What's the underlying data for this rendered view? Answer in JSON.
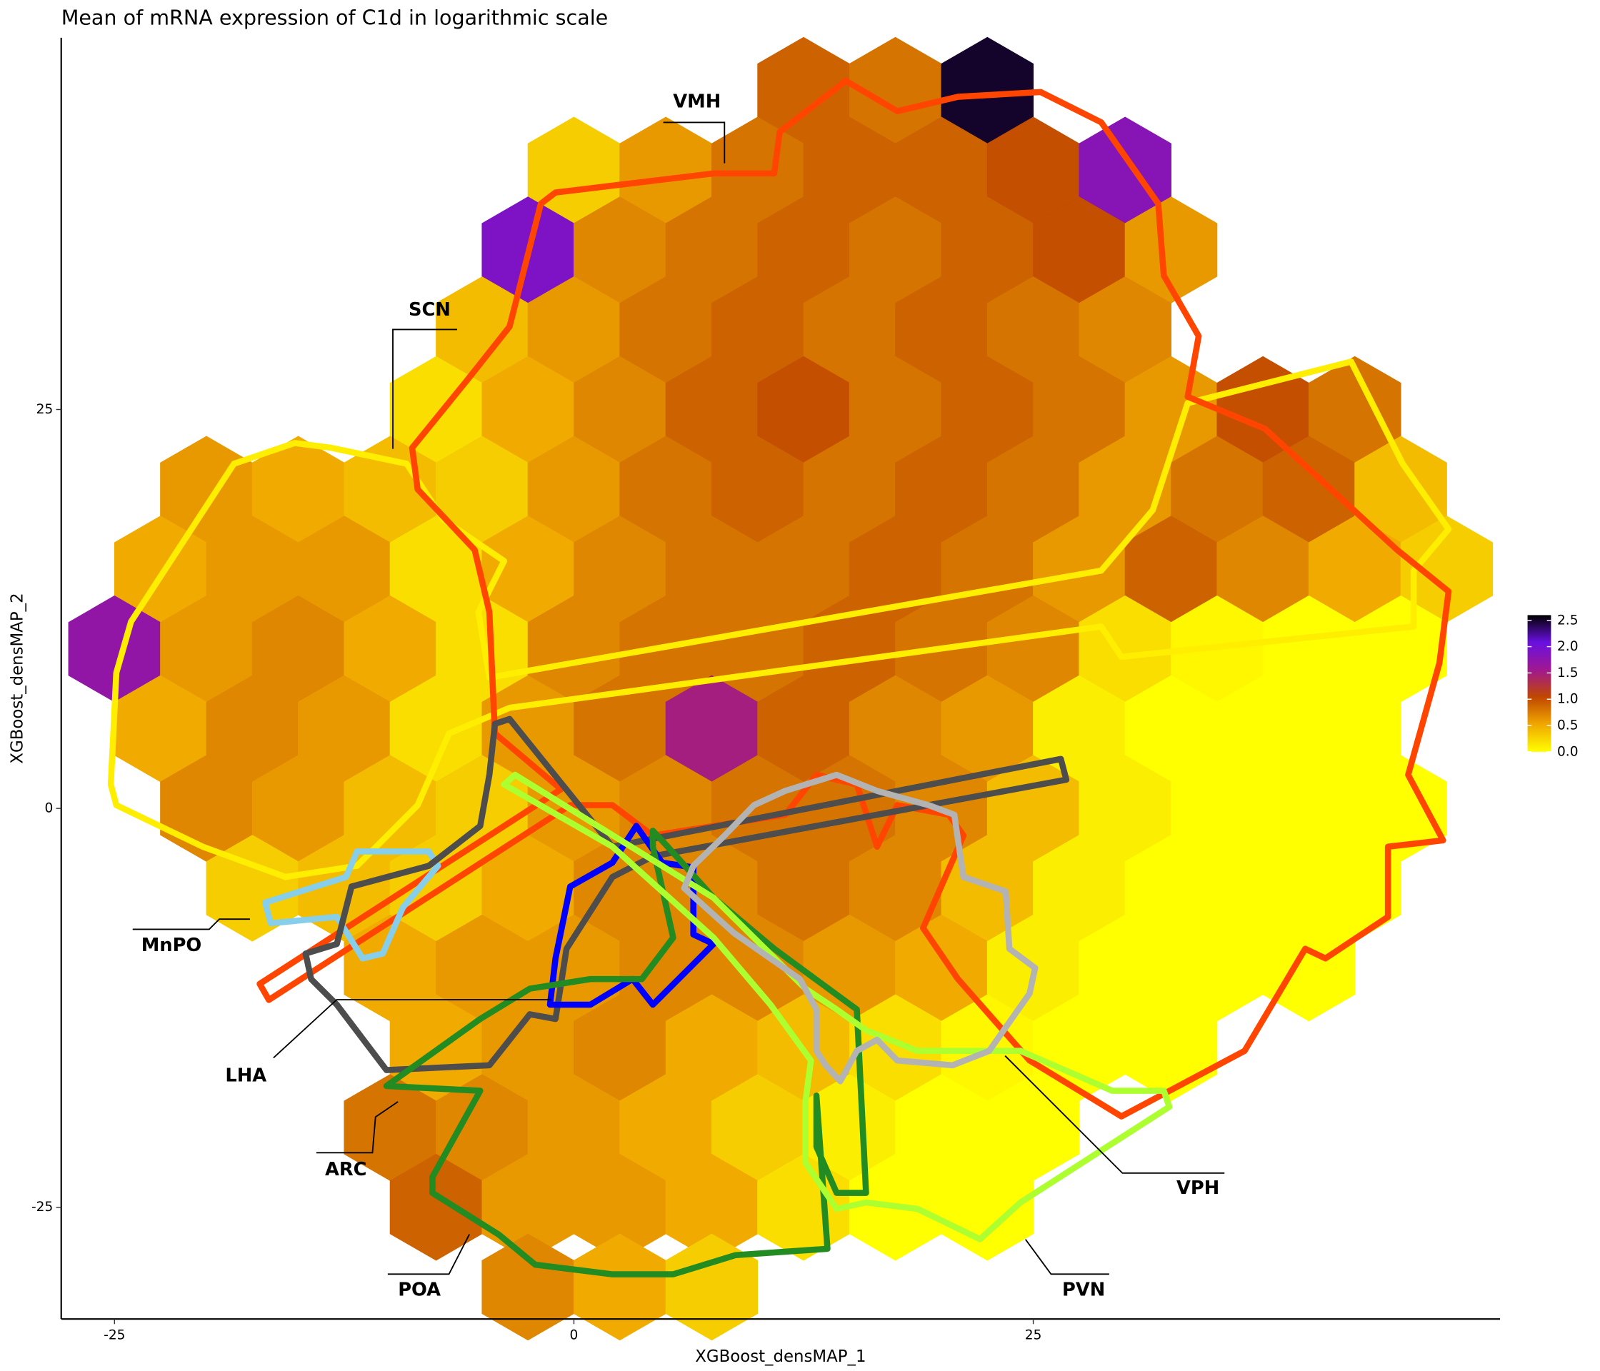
{
  "chart_data": {
    "type": "hexbin",
    "title": "Mean of mRNA expression of C1d in logarithmic scale",
    "x_label": "XGBoost_densMAP_1",
    "y_label": "XGBoost_densMAP_2",
    "xlim": [
      -27.9,
      50.4
    ],
    "ylim": [
      -32,
      48.3
    ],
    "xticks": [
      -25,
      0,
      25
    ],
    "yticks": [
      -25,
      0,
      25
    ],
    "color_scale": {
      "colors": [
        "#ffff00",
        "#f0a800",
        "#c04800",
        "#a01890",
        "#6a10e0",
        "#000000"
      ],
      "lim": [
        0,
        2.6
      ],
      "ticks": [
        {
          "value": 0,
          "label": "0.0"
        },
        {
          "value": 0.5,
          "label": "0.5"
        },
        {
          "value": 1,
          "label": "1.0"
        },
        {
          "value": 1.5,
          "label": "1.5"
        },
        {
          "value": 2,
          "label": "2.0"
        },
        {
          "value": 2.5,
          "label": "2.5"
        }
      ]
    },
    "hexbins": [
      {
        "y": 45,
        "x": [
          12.5,
          17.5,
          22.5
        ],
        "values": [
          0.9,
          0.8,
          2.5
        ]
      },
      {
        "y": 40,
        "x": [
          0,
          5,
          10,
          15,
          20,
          25,
          30
        ],
        "values": [
          0.3,
          0.6,
          0.8,
          0.9,
          0.9,
          1.0,
          1.8
        ]
      },
      {
        "y": 35,
        "x": [
          -2.5,
          2.5,
          7.5,
          12.5,
          17.5,
          22.5,
          27.5,
          32.5
        ],
        "values": [
          1.9,
          0.7,
          0.8,
          0.9,
          0.8,
          0.9,
          1.0,
          0.6
        ]
      },
      {
        "y": 30,
        "x": [
          -5,
          0,
          5,
          10,
          15,
          20,
          25,
          30
        ],
        "values": [
          0.4,
          0.6,
          0.8,
          0.9,
          0.8,
          0.9,
          0.8,
          0.7
        ]
      },
      {
        "y": 25,
        "x": [
          -7.5,
          -2.5,
          2.5,
          7.5,
          12.5,
          17.5,
          22.5,
          27.5,
          32.5,
          37.5,
          42.5
        ],
        "values": [
          0.2,
          0.5,
          0.7,
          0.9,
          1.0,
          0.8,
          0.9,
          0.8,
          0.6,
          1.0,
          0.8
        ]
      },
      {
        "y": 20,
        "x": [
          -20,
          -15,
          -10,
          -5,
          0,
          5,
          10,
          15,
          20,
          25,
          30,
          35,
          40,
          45
        ],
        "values": [
          0.6,
          0.5,
          0.4,
          0.3,
          0.6,
          0.8,
          0.9,
          0.8,
          0.9,
          0.8,
          0.6,
          0.8,
          0.9,
          0.4
        ]
      },
      {
        "y": 15,
        "x": [
          -22.5,
          -17.5,
          -12.5,
          -7.5,
          -2.5,
          2.5,
          7.5,
          12.5,
          17.5,
          22.5,
          27.5,
          32.5,
          37.5,
          42.5,
          47.5
        ],
        "values": [
          0.5,
          0.6,
          0.6,
          0.2,
          0.5,
          0.7,
          0.8,
          0.8,
          0.9,
          0.8,
          0.6,
          0.9,
          0.7,
          0.5,
          0.3
        ]
      },
      {
        "y": 10,
        "x": [
          -25,
          -20,
          -15,
          -10,
          -5,
          0,
          5,
          10,
          15,
          20,
          25,
          30,
          35,
          40,
          45
        ],
        "values": [
          1.7,
          0.6,
          0.7,
          0.5,
          0.2,
          0.7,
          0.8,
          0.8,
          0.9,
          0.8,
          0.7,
          0.2,
          0.05,
          0.0,
          0.0
        ]
      },
      {
        "y": 5,
        "x": [
          -22.5,
          -17.5,
          -12.5,
          -7.5,
          -2.5,
          2.5,
          7.5,
          12.5,
          17.5,
          22.5,
          27.5,
          32.5,
          37.5,
          42.5
        ],
        "values": [
          0.5,
          0.7,
          0.6,
          0.2,
          0.6,
          0.8,
          1.5,
          0.9,
          0.7,
          0.6,
          0.1,
          0.0,
          0.0,
          0.0
        ]
      },
      {
        "y": 0,
        "x": [
          -20,
          -15,
          -10,
          -5,
          0,
          5,
          10,
          15,
          20,
          25,
          30,
          35,
          40,
          45
        ],
        "values": [
          0.7,
          0.6,
          0.4,
          0.3,
          0.6,
          0.7,
          0.8,
          0.8,
          0.7,
          0.4,
          0.1,
          0.0,
          0.0,
          0.0
        ]
      },
      {
        "y": -5,
        "x": [
          -17.5,
          -12.5,
          -7.5,
          -2.5,
          2.5,
          7.5,
          12.5,
          17.5,
          22.5,
          27.5,
          32.5,
          37.5,
          42.5
        ],
        "values": [
          0.3,
          0.4,
          0.3,
          0.5,
          0.7,
          0.7,
          0.8,
          0.7,
          0.4,
          0.1,
          0.0,
          0.0,
          0.0
        ]
      },
      {
        "y": -10,
        "x": [
          -10,
          -5,
          0,
          5,
          10,
          15,
          20,
          25,
          30,
          35,
          40
        ],
        "values": [
          0.5,
          0.6,
          0.6,
          0.7,
          0.7,
          0.6,
          0.5,
          0.1,
          0.0,
          0.0,
          0.0
        ]
      },
      {
        "y": -15,
        "x": [
          -7.5,
          -2.5,
          2.5,
          7.5,
          12.5,
          17.5,
          22.5,
          27.5,
          32.5
        ],
        "values": [
          0.5,
          0.6,
          0.7,
          0.5,
          0.4,
          0.2,
          0.05,
          0.0,
          0.0
        ]
      },
      {
        "y": -20,
        "x": [
          -10,
          -5,
          0,
          5,
          10,
          15,
          20,
          25
        ],
        "values": [
          0.8,
          0.7,
          0.6,
          0.5,
          0.3,
          0.1,
          0.0,
          0.0
        ]
      },
      {
        "y": -25,
        "x": [
          -7.5,
          -2.5,
          2.5,
          7.5,
          12.5,
          17.5,
          22.5
        ],
        "values": [
          0.9,
          0.6,
          0.6,
          0.5,
          0.2,
          0.0,
          0.0
        ]
      },
      {
        "y": -30,
        "x": [
          -2.5,
          2.5,
          7.5
        ],
        "values": [
          0.7,
          0.5,
          0.3
        ]
      }
    ],
    "regions": [
      {
        "name": "SCN",
        "color": "#ffee00",
        "x": [
          -25.2,
          -24.9,
          -24.1,
          -18.5,
          -15.2,
          -13.2,
          -9.1,
          -7.1,
          -3.8,
          -5.2,
          -4.6,
          28.7,
          31.5,
          33.4,
          42.3,
          45.1,
          47.6,
          45.7,
          45.7,
          29.8,
          28.7,
          -3.5,
          -6.8,
          -8.5,
          -11.8,
          -15.7,
          -20.2,
          -24.9
        ],
        "y": [
          1.5,
          8.5,
          11.7,
          21.6,
          22.9,
          22.6,
          21.6,
          18.1,
          15.5,
          12.3,
          8.2,
          14.9,
          18.7,
          25.4,
          28.0,
          21.6,
          17.5,
          14.9,
          11.4,
          9.5,
          11.4,
          6.3,
          4.7,
          0.2,
          -3.6,
          -4.3,
          -2.4,
          0.2
        ]
      },
      {
        "name": "VMH",
        "color": "#ff4500",
        "x": [
          -8.8,
          -5.7,
          -3.5,
          -1.8,
          -1.0,
          7.6,
          10.9,
          11.2,
          14.8,
          17.6,
          20.9,
          25.4,
          28.7,
          31.8,
          32.1,
          34.0,
          33.4,
          37.6,
          44.8,
          47.6,
          47.1,
          45.4,
          47.3,
          44.3,
          44.3,
          40.9,
          39.8,
          36.5,
          29.8,
          24.8,
          20.9,
          19.0,
          21.2,
          20.4,
          17.6,
          16.5,
          15.4,
          13.2,
          11.5,
          4.3,
          2.1,
          -0.2,
          -16.6,
          -17.1,
          -0.7,
          -4.3,
          -4.6,
          -5.4,
          -8.5
        ],
        "y": [
          22.6,
          27.0,
          30.2,
          37.9,
          38.6,
          39.8,
          39.8,
          42.4,
          45.6,
          43.7,
          44.6,
          44.9,
          43.0,
          37.9,
          33.4,
          29.6,
          25.8,
          23.8,
          16.2,
          13.6,
          9.1,
          2.1,
          -2.0,
          -2.4,
          -6.8,
          -9.4,
          -8.8,
          -15.2,
          -19.3,
          -15.8,
          -10.7,
          -7.5,
          -1.7,
          -0.4,
          0.2,
          -2.4,
          1.5,
          2.1,
          -0.4,
          -1.7,
          0.2,
          0.2,
          -12.0,
          -11.0,
          1.2,
          4.7,
          12.3,
          16.2,
          20.0
        ]
      },
      {
        "name": "MnPO",
        "color": "#87ceeb",
        "x": [
          -16.8,
          -12.4,
          -11.8,
          -7.9,
          -7.4,
          -9.3,
          -10.4,
          -11.5,
          -12.9,
          -16.5
        ],
        "y": [
          -5.9,
          -4.3,
          -2.7,
          -2.7,
          -3.6,
          -6.2,
          -9.1,
          -9.4,
          -6.8,
          -7.2
        ]
      },
      {
        "name": "LHA",
        "color": "#4d4d4d",
        "x": [
          -4.3,
          -3.5,
          2.1,
          26.5,
          26.8,
          4.3,
          2.1,
          -0.4,
          -1.0,
          -2.4,
          -4.6,
          -10.2,
          -12.9,
          -14.3,
          -14.6,
          -12.9,
          -12.1,
          -7.9,
          -5.1,
          -4.6
        ],
        "y": [
          5.3,
          5.6,
          -2.4,
          3.1,
          1.8,
          -3.0,
          -4.3,
          -8.8,
          -13.2,
          -12.9,
          -16.1,
          -16.4,
          -12.3,
          -10.7,
          -9.1,
          -8.5,
          -4.9,
          -3.6,
          -1.1,
          2.1
        ]
      },
      {
        "name": "ARC",
        "color": "#0000ff",
        "x": [
          -1.3,
          -1.0,
          -0.2,
          2.1,
          3.4,
          4.8,
          6.5,
          6.5,
          7.6,
          4.3,
          3.2,
          0.9
        ],
        "y": [
          -12.3,
          -9.4,
          -4.9,
          -3.4,
          -1.1,
          -3.4,
          -3.7,
          -7.9,
          -8.5,
          -12.3,
          -10.7,
          -12.3
        ]
      },
      {
        "name": "POA",
        "color": "#228b22",
        "x": [
          -10.2,
          -5.1,
          -2.4,
          0.9,
          3.7,
          5.4,
          4.3,
          4.3,
          5.1,
          7.6,
          10.9,
          15.4,
          15.9,
          14.3,
          13.2,
          13.2,
          13.8,
          8.8,
          5.4,
          2.1,
          -2.1,
          -4.1,
          -7.7,
          -7.7,
          -5.1
        ],
        "y": [
          -17.4,
          -13.2,
          -11.3,
          -10.7,
          -10.7,
          -8.1,
          -2.4,
          -1.4,
          -2.4,
          -5.6,
          -8.8,
          -12.6,
          -24.1,
          -24.1,
          -21.2,
          -18.0,
          -27.6,
          -28.0,
          -29.2,
          -29.2,
          -28.6,
          -26.7,
          -24.1,
          -23.1,
          -17.7
        ]
      },
      {
        "name": "PVN",
        "color": "#adff2f",
        "x": [
          -3.8,
          -3.2,
          7.6,
          12.6,
          14.3,
          15.9,
          18.7,
          24.3,
          29.3,
          32.1,
          32.4,
          24.3,
          22.1,
          18.7,
          15.9,
          14.3,
          12.6,
          12.6,
          12.9,
          10.7,
          7.6,
          2.1
        ],
        "y": [
          1.5,
          2.1,
          -5.6,
          -11.3,
          -12.6,
          -13.9,
          -15.2,
          -15.2,
          -17.7,
          -17.7,
          -18.7,
          -24.7,
          -27.0,
          -25.1,
          -24.7,
          -25.1,
          -22.2,
          -18.4,
          -15.8,
          -12.3,
          -8.1,
          -2.4
        ]
      },
      {
        "name": "VPH",
        "color": "#b3b3b3",
        "x": [
          6.5,
          8.2,
          9.8,
          11.5,
          14.3,
          16.5,
          19.3,
          20.7,
          21.2,
          23.5,
          23.7,
          25.1,
          24.8,
          22.6,
          20.6,
          17.6,
          16.5,
          15.4,
          14.5,
          13.7,
          13.2,
          13.2,
          12.3,
          8.7,
          6.0
        ],
        "y": [
          -3.6,
          -1.7,
          0.2,
          1.1,
          2.1,
          1.1,
          0.2,
          -0.4,
          -4.3,
          -5.2,
          -8.8,
          -10.0,
          -11.6,
          -15.2,
          -16.1,
          -15.8,
          -14.5,
          -15.2,
          -17.1,
          -16.1,
          -15.2,
          -12.6,
          -10.7,
          -7.8,
          -5.0
        ]
      }
    ]
  }
}
